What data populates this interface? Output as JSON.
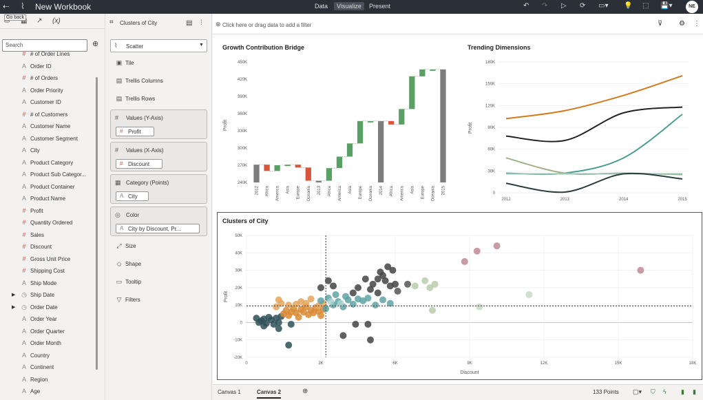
{
  "topbar": {
    "title": "New Workbook",
    "modes": [
      "Data",
      "Visualize",
      "Present"
    ],
    "active_mode": "Visualize",
    "avatar_initials": "NE",
    "back_tooltip": "Go back"
  },
  "left_panel": {
    "tabs": [
      "data-icon",
      "layers-icon",
      "trend-icon",
      "(x)"
    ],
    "search_placeholder": "Search",
    "fields": [
      {
        "label": "# of Order Lines",
        "type": "num",
        "expandable": false
      },
      {
        "label": "Order ID",
        "type": "attr",
        "expandable": false
      },
      {
        "label": "# of Orders",
        "type": "num",
        "expandable": false
      },
      {
        "label": "Order Priority",
        "type": "attr",
        "expandable": false
      },
      {
        "label": "Customer ID",
        "type": "attr",
        "expandable": false
      },
      {
        "label": "# of Customers",
        "type": "num",
        "expandable": false
      },
      {
        "label": "Customer Name",
        "type": "attr",
        "expandable": false
      },
      {
        "label": "Customer Segment",
        "type": "attr",
        "expandable": false
      },
      {
        "label": "City",
        "type": "attr",
        "expandable": false
      },
      {
        "label": "Product Category",
        "type": "attr",
        "expandable": false
      },
      {
        "label": "Product Sub Categor...",
        "type": "attr",
        "expandable": false
      },
      {
        "label": "Product Container",
        "type": "attr",
        "expandable": false
      },
      {
        "label": "Product Name",
        "type": "attr",
        "expandable": false
      },
      {
        "label": "Profit",
        "type": "num",
        "expandable": false
      },
      {
        "label": "Quantity Ordered",
        "type": "num",
        "expandable": false
      },
      {
        "label": "Sales",
        "type": "num",
        "expandable": false
      },
      {
        "label": "Discount",
        "type": "num",
        "expandable": false
      },
      {
        "label": "Gross Unit Price",
        "type": "num",
        "expandable": false
      },
      {
        "label": "Shipping Cost",
        "type": "num",
        "expandable": false
      },
      {
        "label": "Ship Mode",
        "type": "attr",
        "expandable": false
      },
      {
        "label": "Ship Date",
        "type": "time",
        "expandable": true
      },
      {
        "label": "Order Date",
        "type": "time",
        "expandable": true
      },
      {
        "label": "Order Year",
        "type": "attr",
        "expandable": false
      },
      {
        "label": "Order Quarter",
        "type": "attr",
        "expandable": false
      },
      {
        "label": "Order Month",
        "type": "attr",
        "expandable": false
      },
      {
        "label": "Country",
        "type": "attr",
        "expandable": false
      },
      {
        "label": "Continent",
        "type": "attr",
        "expandable": false
      },
      {
        "label": "Region",
        "type": "attr",
        "expandable": false
      },
      {
        "label": "Age",
        "type": "attr",
        "expandable": false
      }
    ]
  },
  "grammar_panel": {
    "viz_title": "Clusters of City",
    "chart_type": "Scatter",
    "items_top": [
      "Tile",
      "Trellis Columns",
      "Trellis Rows"
    ],
    "dropboxes": [
      {
        "label": "Values (Y-Axis)",
        "icon": "#",
        "pill": "Profit",
        "pill_type": "num",
        "pill_width": 56
      },
      {
        "label": "Values (X-Axis)",
        "icon": "#",
        "pill": "Discount",
        "pill_type": "num",
        "pill_width": 68
      },
      {
        "label": "Category (Points)",
        "icon": "▦",
        "pill": "City",
        "pill_type": "attr",
        "pill_width": 48
      },
      {
        "label": "Color",
        "icon": "◎",
        "pill": "City by Discount, Pr...",
        "pill_type": "attr",
        "pill_width": 122
      }
    ],
    "items_bottom": [
      "Size",
      "Shape",
      "Tooltip",
      "Filters"
    ]
  },
  "filter_bar": {
    "placeholder": "Click here or drag data to add a filter"
  },
  "bottom_bar": {
    "tabs": [
      "Canvas 1",
      "Canvas 2"
    ],
    "active_tab": "Canvas 2",
    "points_label": "133 Points"
  },
  "chart_data": [
    {
      "type": "bar",
      "subtype": "waterfall",
      "title": "Growth Contribution Bridge",
      "ylabel": "Profit",
      "ylim": [
        240000,
        450000
      ],
      "yticks": [
        "240K",
        "270K",
        "300K",
        "330K",
        "360K",
        "390K",
        "420K",
        "450K"
      ],
      "categories": [
        "2012",
        "Africa",
        "America",
        "Asia",
        "Europe",
        "Oceania",
        "2013",
        "Africa",
        "America",
        "Asia",
        "Europe",
        "Oceania",
        "2014",
        "Africa",
        "America",
        "Asia",
        "Europe",
        "Oceania",
        "2015"
      ],
      "bars": [
        {
          "from": 240000,
          "to": 271000,
          "kind": "total"
        },
        {
          "from": 271000,
          "to": 260000,
          "kind": "decrease"
        },
        {
          "from": 260000,
          "to": 270000,
          "kind": "increase"
        },
        {
          "from": 270000,
          "to": 271000,
          "kind": "increase"
        },
        {
          "from": 271000,
          "to": 266000,
          "kind": "decrease"
        },
        {
          "from": 266000,
          "to": 243000,
          "kind": "decrease"
        },
        {
          "from": 240000,
          "to": 243000,
          "kind": "total"
        },
        {
          "from": 243000,
          "to": 265000,
          "kind": "increase"
        },
        {
          "from": 265000,
          "to": 285000,
          "kind": "increase"
        },
        {
          "from": 285000,
          "to": 308000,
          "kind": "increase"
        },
        {
          "from": 308000,
          "to": 347000,
          "kind": "increase"
        },
        {
          "from": 347000,
          "to": 347000,
          "kind": "increase"
        },
        {
          "from": 240000,
          "to": 347000,
          "kind": "total"
        },
        {
          "from": 347000,
          "to": 341000,
          "kind": "decrease"
        },
        {
          "from": 341000,
          "to": 368000,
          "kind": "increase"
        },
        {
          "from": 368000,
          "to": 425000,
          "kind": "increase"
        },
        {
          "from": 425000,
          "to": 437000,
          "kind": "increase"
        },
        {
          "from": 437000,
          "to": 437000,
          "kind": "increase"
        },
        {
          "from": 240000,
          "to": 437000,
          "kind": "total"
        }
      ],
      "colors": {
        "increase": "#5aa064",
        "decrease": "#d9553b",
        "total": "#7d7d7d"
      }
    },
    {
      "type": "line",
      "title": "Trending Dimensions",
      "ylabel": "Profit",
      "x": [
        "2012",
        "2013",
        "2014",
        "2015"
      ],
      "ylim": [
        0,
        180000
      ],
      "yticks": [
        "0",
        "30K",
        "60K",
        "90K",
        "120K",
        "150K",
        "180K"
      ],
      "series": [
        {
          "color": "#d07a1f",
          "values": [
            102000,
            113000,
            134000,
            161000
          ]
        },
        {
          "color": "#222222",
          "values": [
            78000,
            72000,
            110000,
            118000
          ]
        },
        {
          "color": "#4a9e8f",
          "values": [
            27000,
            27000,
            48000,
            108000
          ]
        },
        {
          "color": "#a0b088",
          "values": [
            48000,
            27000,
            27000,
            25000
          ]
        },
        {
          "color": "#a0c4b8",
          "values": [
            26000,
            26000,
            26000,
            26000
          ]
        },
        {
          "color": "#2d3e3e",
          "values": [
            13000,
            1000,
            26000,
            19000
          ]
        }
      ]
    },
    {
      "type": "scatter",
      "title": "Clusters of City",
      "xlabel": "Discount",
      "ylabel": "Profit",
      "xlim": [
        0,
        18000
      ],
      "ylim": [
        -20000,
        50000
      ],
      "xticks": [
        "0",
        "3K",
        "6K",
        "9K",
        "12K",
        "15K",
        "18K"
      ],
      "yticks": [
        "-20K",
        "-10K",
        "0",
        "10K",
        "20K",
        "30K",
        "40K",
        "50K"
      ],
      "ref_lines": {
        "x": 3200,
        "y": 9500
      },
      "points": [
        {
          "x": 500,
          "y": 0,
          "c": "#2f5058"
        },
        {
          "x": 700,
          "y": 2000,
          "c": "#2f5058"
        },
        {
          "x": 800,
          "y": -500,
          "c": "#2f5058"
        },
        {
          "x": 600,
          "y": 1000,
          "c": "#2f5058"
        },
        {
          "x": 900,
          "y": 3000,
          "c": "#2f5058"
        },
        {
          "x": 1000,
          "y": 1500,
          "c": "#2f5058"
        },
        {
          "x": 1100,
          "y": -1000,
          "c": "#2f5058"
        },
        {
          "x": 400,
          "y": 2500,
          "c": "#2f5058"
        },
        {
          "x": 1200,
          "y": 2500,
          "c": "#2f5058"
        },
        {
          "x": 700,
          "y": -2000,
          "c": "#2f5058"
        },
        {
          "x": 1300,
          "y": 0,
          "c": "#2f5058"
        },
        {
          "x": 1400,
          "y": 3500,
          "c": "#2f5058"
        },
        {
          "x": 1300,
          "y": -3500,
          "c": "#2f5058"
        },
        {
          "x": 1700,
          "y": -13000,
          "c": "#2f5058"
        },
        {
          "x": 1800,
          "y": -1000,
          "c": "#2f5058"
        },
        {
          "x": 1500,
          "y": 5000,
          "c": "#d98a34"
        },
        {
          "x": 1600,
          "y": 7000,
          "c": "#d98a34"
        },
        {
          "x": 1700,
          "y": 4000,
          "c": "#d98a34"
        },
        {
          "x": 1800,
          "y": 6000,
          "c": "#d98a34"
        },
        {
          "x": 1900,
          "y": 8000,
          "c": "#d98a34"
        },
        {
          "x": 2000,
          "y": 5500,
          "c": "#d98a34"
        },
        {
          "x": 2100,
          "y": 3000,
          "c": "#d98a34"
        },
        {
          "x": 2200,
          "y": 7500,
          "c": "#d98a34"
        },
        {
          "x": 2300,
          "y": 6000,
          "c": "#d98a34"
        },
        {
          "x": 2400,
          "y": 9000,
          "c": "#d98a34"
        },
        {
          "x": 2500,
          "y": 4500,
          "c": "#d98a34"
        },
        {
          "x": 2600,
          "y": 7000,
          "c": "#d98a34"
        },
        {
          "x": 2700,
          "y": 5500,
          "c": "#d98a34"
        },
        {
          "x": 2800,
          "y": 8500,
          "c": "#d98a34"
        },
        {
          "x": 2900,
          "y": 6500,
          "c": "#d98a34"
        },
        {
          "x": 3000,
          "y": 4000,
          "c": "#d98a34"
        },
        {
          "x": 3100,
          "y": 7500,
          "c": "#d98a34"
        },
        {
          "x": 1200,
          "y": 9000,
          "c": "#e8a45a"
        },
        {
          "x": 1300,
          "y": 13000,
          "c": "#e8a45a"
        },
        {
          "x": 2000,
          "y": 10500,
          "c": "#e8a45a"
        },
        {
          "x": 2200,
          "y": 12000,
          "c": "#e8a45a"
        },
        {
          "x": 2600,
          "y": 13500,
          "c": "#e8a45a"
        },
        {
          "x": 2900,
          "y": 9500,
          "c": "#e8a45a"
        },
        {
          "x": 3100,
          "y": 11000,
          "c": "#e8a45a"
        },
        {
          "x": 1400,
          "y": 11000,
          "c": "#e8a45a"
        },
        {
          "x": 1700,
          "y": 10000,
          "c": "#e8a45a"
        },
        {
          "x": 2400,
          "y": 11000,
          "c": "#e8a45a"
        },
        {
          "x": 3000,
          "y": 12500,
          "c": "#5fa3a3"
        },
        {
          "x": 3300,
          "y": 14000,
          "c": "#5fa3a3"
        },
        {
          "x": 3500,
          "y": 10000,
          "c": "#5fa3a3"
        },
        {
          "x": 3700,
          "y": 12000,
          "c": "#5fa3a3"
        },
        {
          "x": 3900,
          "y": 9000,
          "c": "#5fa3a3"
        },
        {
          "x": 4100,
          "y": 13000,
          "c": "#5fa3a3"
        },
        {
          "x": 4300,
          "y": 10500,
          "c": "#5fa3a3"
        },
        {
          "x": 4500,
          "y": 13500,
          "c": "#5fa3a3"
        },
        {
          "x": 4700,
          "y": 12500,
          "c": "#5fa3a3"
        },
        {
          "x": 4900,
          "y": 14000,
          "c": "#5fa3a3"
        },
        {
          "x": 5200,
          "y": 10000,
          "c": "#5fa3a3"
        },
        {
          "x": 5500,
          "y": 13000,
          "c": "#5fa3a3"
        },
        {
          "x": 5800,
          "y": 11000,
          "c": "#5fa3a3"
        },
        {
          "x": 4000,
          "y": 15000,
          "c": "#5fa3a3"
        },
        {
          "x": 3600,
          "y": 16000,
          "c": "#5fa3a3"
        },
        {
          "x": 3200,
          "y": 8000,
          "c": "#5fa3a3"
        },
        {
          "x": 3400,
          "y": 12000,
          "c": "#a8d2d0"
        },
        {
          "x": 3800,
          "y": 11000,
          "c": "#a8d2d0"
        },
        {
          "x": 3300,
          "y": 24000,
          "c": "#444"
        },
        {
          "x": 3000,
          "y": 20000,
          "c": "#444"
        },
        {
          "x": 3500,
          "y": 21000,
          "c": "#444"
        },
        {
          "x": 4500,
          "y": 20000,
          "c": "#444"
        },
        {
          "x": 4300,
          "y": 17000,
          "c": "#444"
        },
        {
          "x": 5000,
          "y": 19000,
          "c": "#444"
        },
        {
          "x": 5100,
          "y": 22000,
          "c": "#444"
        },
        {
          "x": 5300,
          "y": 25000,
          "c": "#444"
        },
        {
          "x": 5400,
          "y": 29000,
          "c": "#444"
        },
        {
          "x": 5500,
          "y": 27000,
          "c": "#444"
        },
        {
          "x": 5600,
          "y": 24000,
          "c": "#444"
        },
        {
          "x": 5700,
          "y": 32000,
          "c": "#444"
        },
        {
          "x": 5900,
          "y": 30000,
          "c": "#444"
        },
        {
          "x": 5800,
          "y": 21000,
          "c": "#444"
        },
        {
          "x": 5300,
          "y": 17000,
          "c": "#444"
        },
        {
          "x": 6000,
          "y": 22000,
          "c": "#444"
        },
        {
          "x": 4800,
          "y": 25000,
          "c": "#444"
        },
        {
          "x": 3900,
          "y": -7500,
          "c": "#444"
        },
        {
          "x": 4400,
          "y": -1000,
          "c": "#444"
        },
        {
          "x": 4900,
          "y": -1000,
          "c": "#444"
        },
        {
          "x": 5000,
          "y": -10000,
          "c": "#444"
        },
        {
          "x": 6100,
          "y": 18000,
          "c": "#555"
        },
        {
          "x": 6500,
          "y": 22000,
          "c": "#555"
        },
        {
          "x": 6800,
          "y": 21000,
          "c": "#b8ccac"
        },
        {
          "x": 7200,
          "y": 24000,
          "c": "#b8ccac"
        },
        {
          "x": 7600,
          "y": 22000,
          "c": "#b8ccac"
        },
        {
          "x": 7400,
          "y": 20000,
          "c": "#b8ccac"
        },
        {
          "x": 7500,
          "y": 7000,
          "c": "#b8ccac"
        },
        {
          "x": 9400,
          "y": 9000,
          "c": "#c8d8c8"
        },
        {
          "x": 11400,
          "y": 16000,
          "c": "#c8d8c8"
        },
        {
          "x": 8800,
          "y": 35000,
          "c": "#c08a98"
        },
        {
          "x": 9300,
          "y": 41000,
          "c": "#c08a98"
        },
        {
          "x": 10100,
          "y": 44000,
          "c": "#c08a98"
        },
        {
          "x": 15900,
          "y": 30000,
          "c": "#c08a98"
        }
      ]
    }
  ]
}
